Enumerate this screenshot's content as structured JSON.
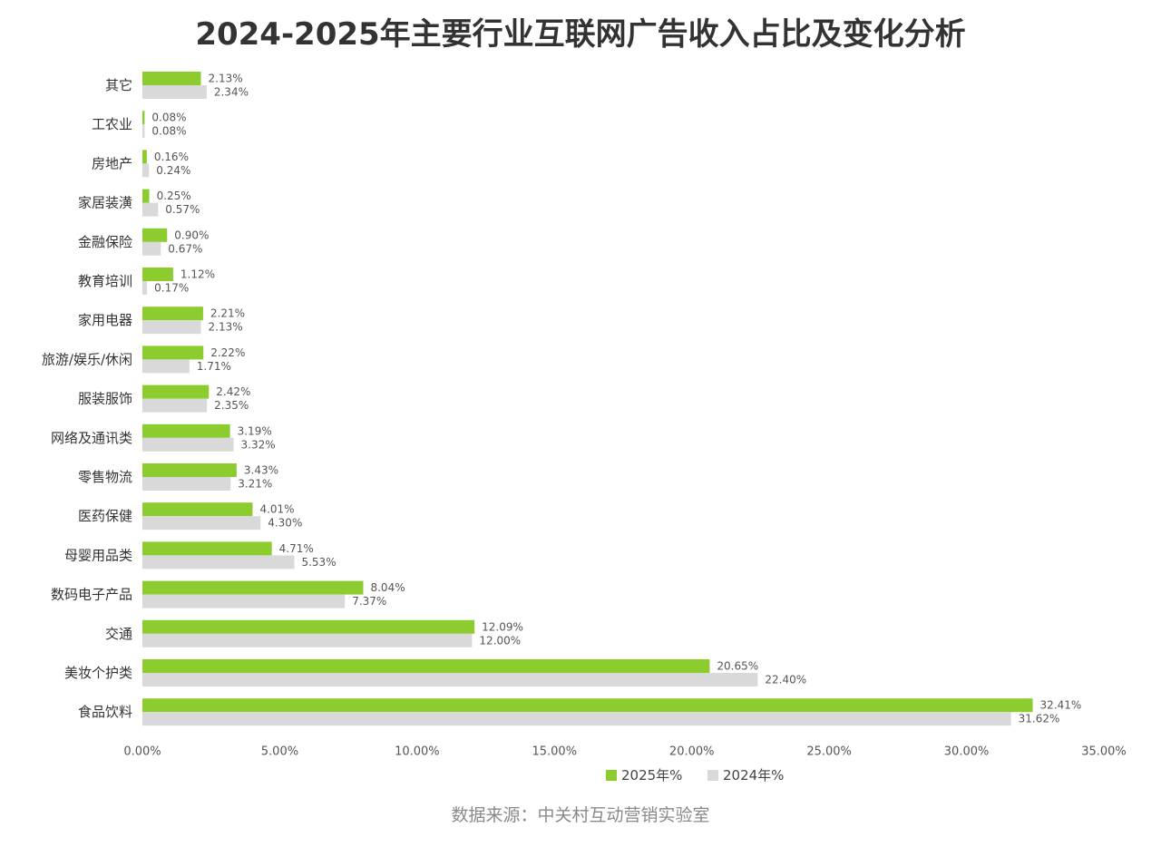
{
  "source": "数据来源：中关村互动营销实验室",
  "colors": {
    "series_2025": "#8ccc2e",
    "series_2024": "#d9d9d9",
    "label": "#555555",
    "axis_text": "#555555"
  },
  "chart_data": {
    "type": "bar",
    "orientation": "horizontal",
    "title": "2024-2025年主要行业互联网广告收入占比及变化分析",
    "categories": [
      "其它",
      "工农业",
      "房地产",
      "家居装潢",
      "金融保险",
      "教育培训",
      "家用电器",
      "旅游/娱乐/休闲",
      "服装服饰",
      "网络及通讯类",
      "零售物流",
      "医药保健",
      "母婴用品类",
      "数码电子产品",
      "交通",
      "美妆个护类",
      "食品饮料"
    ],
    "series": [
      {
        "name": "2025年%",
        "values": [
          2.13,
          0.08,
          0.16,
          0.25,
          0.9,
          1.12,
          2.21,
          2.22,
          2.42,
          3.19,
          3.43,
          4.01,
          4.71,
          8.04,
          12.09,
          20.65,
          32.41
        ],
        "labels": [
          "2.13%",
          "0.08%",
          "0.16%",
          "0.25%",
          "0.90%",
          "1.12%",
          "2.21%",
          "2.22%",
          "2.42%",
          "3.19%",
          "3.43%",
          "4.01%",
          "4.71%",
          "8.04%",
          "12.09%",
          "20.65%",
          "32.41%"
        ]
      },
      {
        "name": "2024年%",
        "values": [
          2.34,
          0.08,
          0.24,
          0.57,
          0.67,
          0.17,
          2.13,
          1.71,
          2.35,
          3.32,
          3.21,
          4.3,
          5.53,
          7.37,
          12.0,
          22.4,
          31.62
        ],
        "labels": [
          "2.34%",
          "0.08%",
          "0.24%",
          "0.57%",
          "0.67%",
          "0.17%",
          "2.13%",
          "1.71%",
          "2.35%",
          "3.32%",
          "3.21%",
          "4.30%",
          "5.53%",
          "7.37%",
          "12.00%",
          "22.40%",
          "31.62%"
        ]
      }
    ],
    "xlim": [
      0,
      35
    ],
    "xticks": [
      "0.00%",
      "5.00%",
      "10.00%",
      "15.00%",
      "20.00%",
      "25.00%",
      "30.00%",
      "35.00%"
    ],
    "grid": false,
    "legend": "bottom-center"
  }
}
